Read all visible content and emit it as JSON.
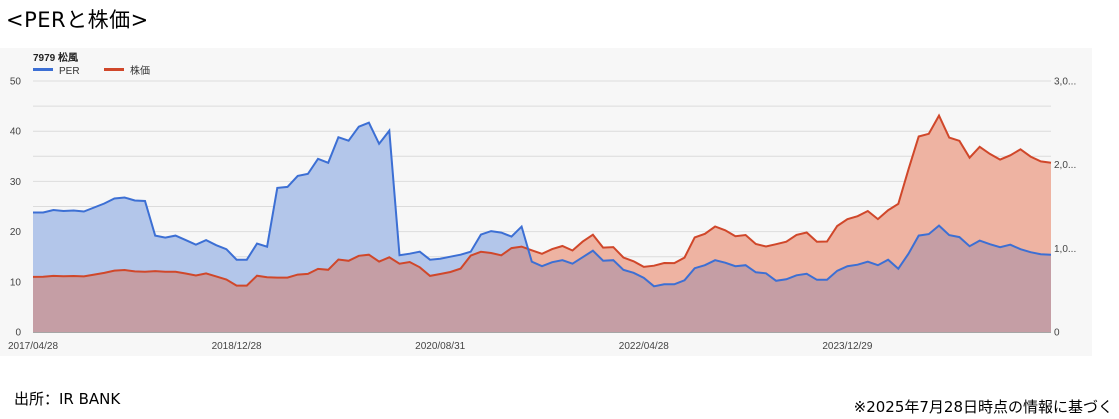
{
  "page": {
    "heading": "<PERと株価>",
    "source": "出所：IR BANK",
    "as_of_note": "※2025年7月28日時点の情報に基づく"
  },
  "colors": {
    "per_line": "#3c6fd4",
    "per_fill": "#b3c6ea",
    "price_line": "#d0472a",
    "price_fill": "#eeb3a2",
    "overlap_fill": "#c59ea5",
    "grid": "#dcdcdc",
    "panel_background": "#f7f7f7"
  },
  "chart_data": {
    "type": "area",
    "title": "7979 松風",
    "xlabel": "",
    "ylabel": "",
    "ylim": [
      0,
      50
    ],
    "y2lim": [
      0,
      3000
    ],
    "grid": true,
    "legend_position": "top-left",
    "x_tick_labels": [
      "2017/04/28",
      "2018/12/28",
      "2020/08/31",
      "2022/04/28",
      "2023/12/29"
    ],
    "y_tick_labels": [
      "0",
      "10",
      "20",
      "30",
      "40",
      "50"
    ],
    "y2_tick_labels": [
      "0",
      "1,0...",
      "2,0...",
      "3,0..."
    ],
    "series": [
      {
        "name": "PER",
        "axis": "left",
        "values": [
          23.8,
          23.8,
          24.3,
          24.1,
          24.2,
          24.0,
          24.8,
          25.6,
          26.6,
          26.8,
          26.2,
          26.1,
          19.2,
          18.8,
          19.2,
          18.3,
          17.4,
          18.3,
          17.3,
          16.5,
          14.4,
          14.4,
          17.6,
          17.0,
          28.7,
          28.9,
          31.1,
          31.5,
          34.5,
          33.7,
          38.8,
          38.1,
          40.9,
          41.7,
          37.5,
          40.1,
          15.3,
          15.6,
          16.0,
          14.4,
          14.6,
          15.0,
          15.4,
          16.0,
          19.4,
          20.1,
          19.8,
          19.0,
          21.0,
          14.0,
          13.1,
          13.9,
          14.3,
          13.6,
          14.9,
          16.2,
          14.2,
          14.3,
          12.4,
          11.8,
          10.8,
          9.1,
          9.5,
          9.5,
          10.3,
          12.7,
          13.3,
          14.3,
          13.8,
          13.1,
          13.3,
          11.9,
          11.7,
          10.2,
          10.5,
          11.3,
          11.6,
          10.4,
          10.4,
          12.2,
          13.1,
          13.4,
          14.0,
          13.3,
          14.4,
          12.6,
          15.6,
          19.2,
          19.5,
          21.2,
          19.3,
          18.9,
          17.1,
          18.2,
          17.5,
          16.9,
          17.4,
          16.5,
          15.9,
          15.5,
          15.4
        ]
      },
      {
        "name": "株価",
        "axis": "right",
        "values": [
          658,
          661,
          671,
          667,
          669,
          665,
          686,
          706,
          734,
          741,
          724,
          720,
          728,
          720,
          719,
          699,
          675,
          700,
          664,
          628,
          554,
          555,
          673,
          655,
          650,
          650,
          686,
          694,
          754,
          743,
          866,
          851,
          911,
          924,
          842,
          893,
          816,
          837,
          773,
          670,
          693,
          717,
          758,
          913,
          959,
          944,
          917,
          1003,
          1021,
          977,
          935,
          991,
          1028,
          974,
          1080,
          1163,
          1009,
          1015,
          890,
          845,
          778,
          793,
          825,
          824,
          889,
          1131,
          1174,
          1261,
          1215,
          1145,
          1159,
          1052,
          1022,
          1049,
          1079,
          1160,
          1189,
          1078,
          1082,
          1267,
          1348,
          1384,
          1446,
          1350,
          1456,
          1531,
          1945,
          2337,
          2369,
          2586,
          2323,
          2285,
          2083,
          2214,
          2129,
          2061,
          2112,
          2184,
          2097,
          2039,
          2022
        ]
      }
    ]
  }
}
